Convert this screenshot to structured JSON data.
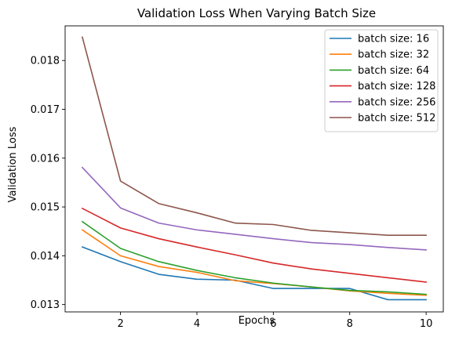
{
  "chart_data": {
    "type": "line",
    "title": "Validation Loss When Varying Batch Size",
    "xlabel": "Epochs",
    "ylabel": "Validation Loss",
    "xlim": [
      0.55,
      10.45
    ],
    "ylim": [
      0.01285,
      0.01871
    ],
    "xticks": [
      2,
      4,
      6,
      8,
      10
    ],
    "xtick_labels": [
      "2",
      "4",
      "6",
      "8",
      "10"
    ],
    "yticks": [
      0.013,
      0.014,
      0.015,
      0.016,
      0.017,
      0.018
    ],
    "ytick_labels": [
      "0.013",
      "0.014",
      "0.015",
      "0.016",
      "0.017",
      "0.018"
    ],
    "grid": false,
    "legend_position": "top-right",
    "x": [
      1,
      2,
      3,
      4,
      5,
      6,
      7,
      8,
      9,
      10
    ],
    "series": [
      {
        "name": "batch size: 16",
        "color": "#1f77b4",
        "values": [
          0.01418,
          0.01388,
          0.01362,
          0.01352,
          0.0135,
          0.01333,
          0.01333,
          0.01333,
          0.0131,
          0.0131
        ]
      },
      {
        "name": "batch size: 32",
        "color": "#ff7f0e",
        "values": [
          0.01453,
          0.014,
          0.01378,
          0.01366,
          0.01349,
          0.01343,
          0.01336,
          0.01328,
          0.01323,
          0.01319
        ]
      },
      {
        "name": "batch size: 64",
        "color": "#2ca02c",
        "values": [
          0.0147,
          0.01415,
          0.01388,
          0.0137,
          0.01355,
          0.01344,
          0.01336,
          0.01329,
          0.01326,
          0.01321
        ]
      },
      {
        "name": "batch size: 128",
        "color": "#d62728",
        "values": [
          0.01497,
          0.01457,
          0.01435,
          0.01418,
          0.01402,
          0.01385,
          0.01373,
          0.01364,
          0.01355,
          0.01346
        ]
      },
      {
        "name": "batch size: 256",
        "color": "#9467bd",
        "values": [
          0.01581,
          0.01498,
          0.01467,
          0.01453,
          0.01444,
          0.01435,
          0.01427,
          0.01423,
          0.01417,
          0.01412
        ]
      },
      {
        "name": "batch size: 512",
        "color": "#8c564b",
        "values": [
          0.01848,
          0.01553,
          0.01507,
          0.01488,
          0.01467,
          0.01464,
          0.01452,
          0.01447,
          0.01442,
          0.01442
        ]
      }
    ]
  }
}
